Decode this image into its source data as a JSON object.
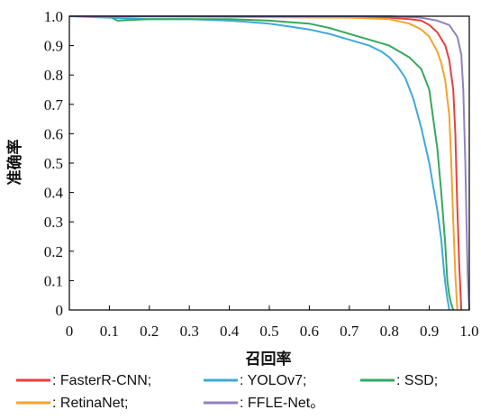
{
  "chart_data": {
    "type": "line",
    "title": "",
    "xlabel": "召回率",
    "ylabel": "准确率",
    "xlim": [
      0,
      1
    ],
    "ylim": [
      0,
      1
    ],
    "x_ticks": [
      "0",
      "0.1",
      "0.2",
      "0.3",
      "0.4",
      "0.5",
      "0.6",
      "0.7",
      "0.8",
      "0.9",
      "1.0"
    ],
    "y_ticks": [
      "0",
      "0.1",
      "0.2",
      "0.3",
      "0.4",
      "0.5",
      "0.6",
      "0.7",
      "0.8",
      "0.9",
      "1.0"
    ],
    "grid": false,
    "legend_position": "bottom",
    "series": [
      {
        "name": "FasterR-CNN",
        "legend_label": ": FasterR-CNN;",
        "color": "#e8403d",
        "x": [
          0.0,
          0.7,
          0.8,
          0.85,
          0.88,
          0.9,
          0.92,
          0.94,
          0.95,
          0.96,
          0.965,
          0.97,
          0.975,
          0.98
        ],
        "y": [
          1.0,
          1.0,
          0.995,
          0.99,
          0.985,
          0.97,
          0.945,
          0.9,
          0.85,
          0.75,
          0.6,
          0.35,
          0.15,
          0.0
        ]
      },
      {
        "name": "YOLOv7",
        "legend_label": ": YOLOv7;",
        "color": "#3fa9dc",
        "x": [
          0.0,
          0.1,
          0.2,
          0.3,
          0.4,
          0.45,
          0.5,
          0.55,
          0.6,
          0.65,
          0.7,
          0.75,
          0.78,
          0.8,
          0.82,
          0.84,
          0.86,
          0.88,
          0.9,
          0.91,
          0.92,
          0.93,
          0.935,
          0.94,
          0.945,
          0.95
        ],
        "y": [
          1.0,
          0.995,
          0.99,
          0.99,
          0.985,
          0.98,
          0.975,
          0.965,
          0.955,
          0.94,
          0.92,
          0.9,
          0.88,
          0.86,
          0.83,
          0.79,
          0.72,
          0.62,
          0.5,
          0.42,
          0.34,
          0.24,
          0.16,
          0.09,
          0.04,
          0.0
        ]
      },
      {
        "name": "SSD",
        "legend_label": ": SSD;",
        "color": "#36a85e",
        "x": [
          0.1,
          0.12,
          0.2,
          0.3,
          0.4,
          0.5,
          0.6,
          0.65,
          0.7,
          0.75,
          0.8,
          0.85,
          0.88,
          0.9,
          0.91,
          0.92,
          0.93,
          0.94,
          0.945,
          0.95,
          0.955,
          0.96
        ],
        "y": [
          1.0,
          0.985,
          0.99,
          0.99,
          0.99,
          0.985,
          0.975,
          0.96,
          0.94,
          0.92,
          0.9,
          0.86,
          0.82,
          0.75,
          0.65,
          0.55,
          0.4,
          0.22,
          0.1,
          0.05,
          0.02,
          0.0
        ]
      },
      {
        "name": "RetinaNet",
        "legend_label": ": RetinaNet;",
        "color": "#f4a32c",
        "x": [
          0.0,
          0.7,
          0.8,
          0.85,
          0.88,
          0.9,
          0.92,
          0.93,
          0.94,
          0.95,
          0.955,
          0.96,
          0.965,
          0.97
        ],
        "y": [
          1.0,
          0.995,
          0.99,
          0.975,
          0.955,
          0.93,
          0.88,
          0.84,
          0.78,
          0.66,
          0.5,
          0.3,
          0.12,
          0.0
        ]
      },
      {
        "name": "FFLE-Net",
        "legend_label": ": FFLE-Net。",
        "color": "#9381c0",
        "x": [
          0.0,
          0.8,
          0.88,
          0.92,
          0.95,
          0.97,
          0.98,
          0.985,
          0.99,
          0.993,
          0.996,
          1.0
        ],
        "y": [
          1.0,
          1.0,
          0.995,
          0.985,
          0.97,
          0.93,
          0.87,
          0.75,
          0.5,
          0.3,
          0.12,
          0.0
        ]
      }
    ]
  }
}
